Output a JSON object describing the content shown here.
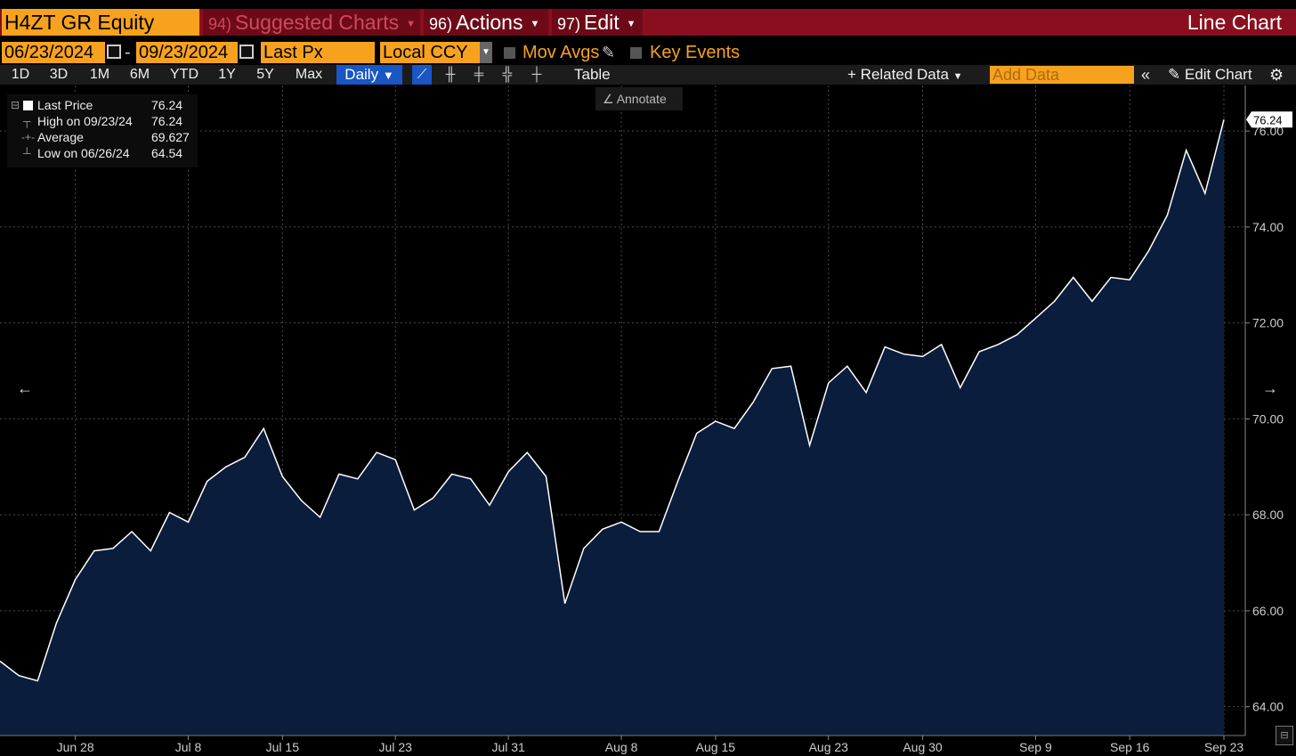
{
  "header": {
    "ticker": "H4ZT GR Equity",
    "suggested": {
      "num": "94)",
      "label": "Suggested Charts"
    },
    "actions": {
      "num": "96)",
      "label": "Actions"
    },
    "edit": {
      "num": "97)",
      "label": "Edit"
    },
    "chart_type": "Line Chart"
  },
  "controls": {
    "date_from": "06/23/2024",
    "date_separator": "-",
    "date_to": "09/23/2024",
    "price_field": "Last Px",
    "currency": "Local CCY",
    "mov_avgs": "Mov Avgs",
    "key_events": "Key Events"
  },
  "toolbar": {
    "ranges": [
      "1D",
      "3D",
      "1M",
      "6M",
      "YTD",
      "1Y",
      "5Y",
      "Max"
    ],
    "frequency": "Daily",
    "table": "Table",
    "related_data": "Related Data",
    "add_data_placeholder": "Add Data",
    "edit_chart": "Edit Chart"
  },
  "legend": {
    "last_price_label": "Last Price",
    "last_price": "76.24",
    "high_label": "High on 09/23/24",
    "high": "76.24",
    "average_label": "Average",
    "average": "69.627",
    "low_label": "Low on 06/26/24",
    "low": "64.54"
  },
  "annotate": "Annotate",
  "colors": {
    "accent": "#f7a21e",
    "header_bg": "#8a0f1e",
    "line": "#ffffff",
    "area": "#0b1d3d",
    "selected": "#1a56c4"
  },
  "chart_data": {
    "type": "area",
    "series": [
      {
        "name": "Last Price",
        "values": [
          64.95,
          64.65,
          64.54,
          65.75,
          66.65,
          67.25,
          67.3,
          67.65,
          67.25,
          68.05,
          67.85,
          68.7,
          69.0,
          69.2,
          69.8,
          68.8,
          68.3,
          67.95,
          68.85,
          68.75,
          69.3,
          69.15,
          68.1,
          68.35,
          68.85,
          68.75,
          68.2,
          68.9,
          69.3,
          68.8,
          66.15,
          67.3,
          67.7,
          67.85,
          67.65,
          67.65,
          68.7,
          69.7,
          69.95,
          69.8,
          70.35,
          71.05,
          71.1,
          69.45,
          70.75,
          71.1,
          70.55,
          71.5,
          71.35,
          71.3,
          71.55,
          70.65,
          71.4,
          71.55,
          71.75,
          72.1,
          72.45,
          72.95,
          72.45,
          72.95,
          72.9,
          73.5,
          74.25,
          75.6,
          74.7,
          76.24
        ]
      }
    ],
    "x_ticks": [
      {
        "label": "Jun 28",
        "index": 4
      },
      {
        "label": "Jul 8",
        "index": 10
      },
      {
        "label": "Jul 15",
        "index": 15
      },
      {
        "label": "Jul 23",
        "index": 21
      },
      {
        "label": "Jul 31",
        "index": 27
      },
      {
        "label": "Aug 8",
        "index": 33
      },
      {
        "label": "Aug 15",
        "index": 38
      },
      {
        "label": "Aug 23",
        "index": 44
      },
      {
        "label": "Aug 30",
        "index": 49
      },
      {
        "label": "Sep 9",
        "index": 55
      },
      {
        "label": "Sep 16",
        "index": 60
      },
      {
        "label": "Sep 23",
        "index": 65
      }
    ],
    "y_ticks": [
      "64.00",
      "66.00",
      "68.00",
      "70.00",
      "72.00",
      "74.00",
      "76.00"
    ],
    "ylim": [
      63.4,
      76.95
    ],
    "last_value_label": "76.24",
    "grid": true
  }
}
